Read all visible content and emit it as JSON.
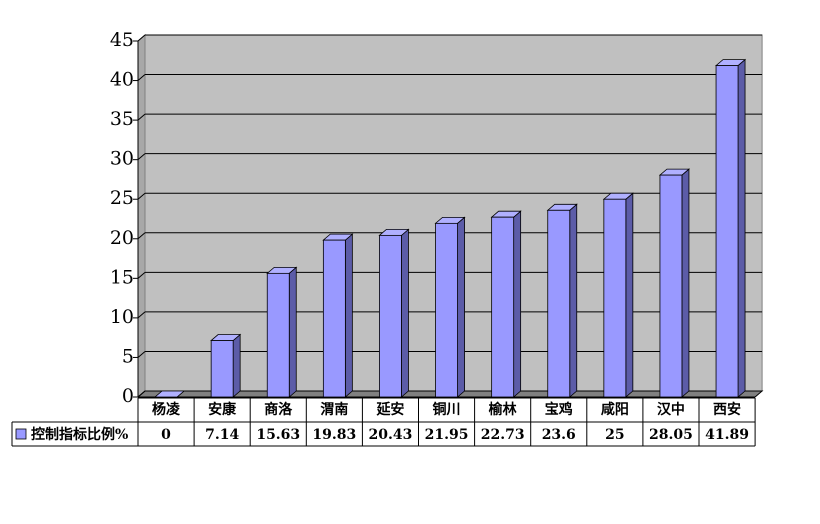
{
  "chart_data": {
    "type": "bar",
    "categories": [
      "杨凌",
      "安康",
      "商洛",
      "渭南",
      "延安",
      "铜川",
      "榆林",
      "宝鸡",
      "咸阳",
      "汉中",
      "西安"
    ],
    "series": [
      {
        "name": "控制指标比例%",
        "color": "#9999ff",
        "values": [
          0,
          7.14,
          15.63,
          19.83,
          20.43,
          21.95,
          22.73,
          23.6,
          25,
          28.05,
          41.89
        ]
      }
    ],
    "ylim": [
      0,
      45
    ],
    "yticks": [
      0,
      5,
      10,
      15,
      20,
      25,
      30,
      35,
      40,
      45
    ],
    "grid": true
  }
}
